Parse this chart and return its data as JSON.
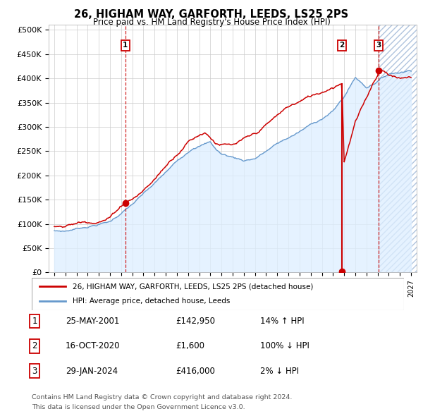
{
  "title": "26, HIGHAM WAY, GARFORTH, LEEDS, LS25 2PS",
  "subtitle": "Price paid vs. HM Land Registry's House Price Index (HPI)",
  "ylabel_ticks": [
    "£0",
    "£50K",
    "£100K",
    "£150K",
    "£200K",
    "£250K",
    "£300K",
    "£350K",
    "£400K",
    "£450K",
    "£500K"
  ],
  "ytick_values": [
    0,
    50000,
    100000,
    150000,
    200000,
    250000,
    300000,
    350000,
    400000,
    450000,
    500000
  ],
  "ylim": [
    0,
    510000
  ],
  "xlim_start": 1994.5,
  "xlim_end": 2027.5,
  "sale_color": "#cc0000",
  "hpi_color": "#6699cc",
  "hpi_fill_color": "#ddeeff",
  "sale_label": "26, HIGHAM WAY, GARFORTH, LEEDS, LS25 2PS (detached house)",
  "hpi_label": "HPI: Average price, detached house, Leeds",
  "t1_year": 2001.38,
  "t1_price": 142950,
  "t2_year": 2020.79,
  "t2_price": 1600,
  "t3_year": 2024.08,
  "t3_price": 416000,
  "hatch_start": 2024.08,
  "transactions": [
    {
      "num": 1,
      "date": "25-MAY-2001",
      "price_str": "£142,950",
      "pct": "14% ↑ HPI",
      "year": 2001.38,
      "price": 142950
    },
    {
      "num": 2,
      "date": "16-OCT-2020",
      "price_str": "£1,600",
      "pct": "100% ↓ HPI",
      "year": 2020.79,
      "price": 1600
    },
    {
      "num": 3,
      "date": "29-JAN-2024",
      "price_str": "£416,000",
      "pct": "2% ↓ HPI",
      "year": 2024.08,
      "price": 416000
    }
  ],
  "footnote1": "Contains HM Land Registry data © Crown copyright and database right 2024.",
  "footnote2": "This data is licensed under the Open Government Licence v3.0.",
  "bg_color": "#ffffff",
  "grid_color": "#cccccc"
}
